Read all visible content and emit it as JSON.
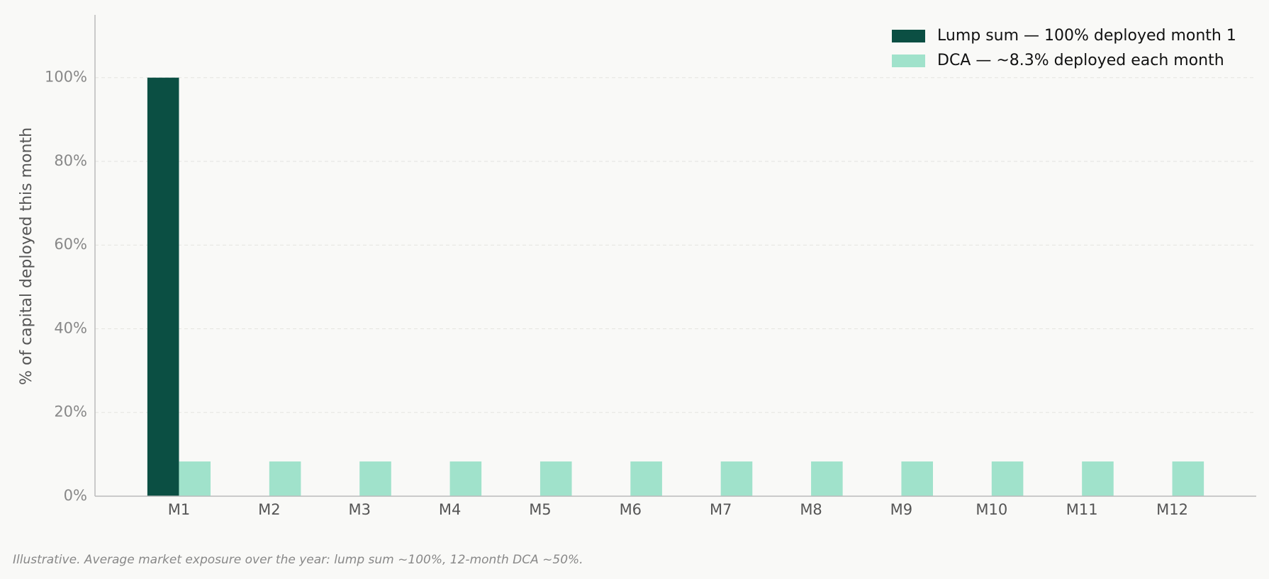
{
  "chart_data": {
    "type": "bar",
    "ylabel": "% of capital deployed this month",
    "note": "Illustrative. Average market exposure over the year: lump sum ~100%, 12-month DCA ~50%.",
    "categories": [
      "M1",
      "M2",
      "M3",
      "M4",
      "M5",
      "M6",
      "M7",
      "M8",
      "M9",
      "M10",
      "M11",
      "M12"
    ],
    "series": [
      {
        "name": "Lump sum — 100% deployed month 1",
        "color": "#0b4f43",
        "values": [
          100,
          0,
          0,
          0,
          0,
          0,
          0,
          0,
          0,
          0,
          0,
          0
        ]
      },
      {
        "name": "DCA — ~8.3% deployed each month",
        "color": "#a0e2cb",
        "values": [
          8.3,
          8.3,
          8.3,
          8.3,
          8.3,
          8.3,
          8.3,
          8.3,
          8.3,
          8.3,
          8.3,
          8.3
        ]
      }
    ],
    "ylim": [
      0,
      115
    ],
    "yticks": [
      {
        "value": 0,
        "label": "0%"
      },
      {
        "value": 20,
        "label": "20%"
      },
      {
        "value": 40,
        "label": "40%"
      },
      {
        "value": 60,
        "label": "60%"
      },
      {
        "value": 80,
        "label": "80%"
      },
      {
        "value": 100,
        "label": "100%"
      }
    ],
    "grid": true,
    "legend": "upper right"
  }
}
